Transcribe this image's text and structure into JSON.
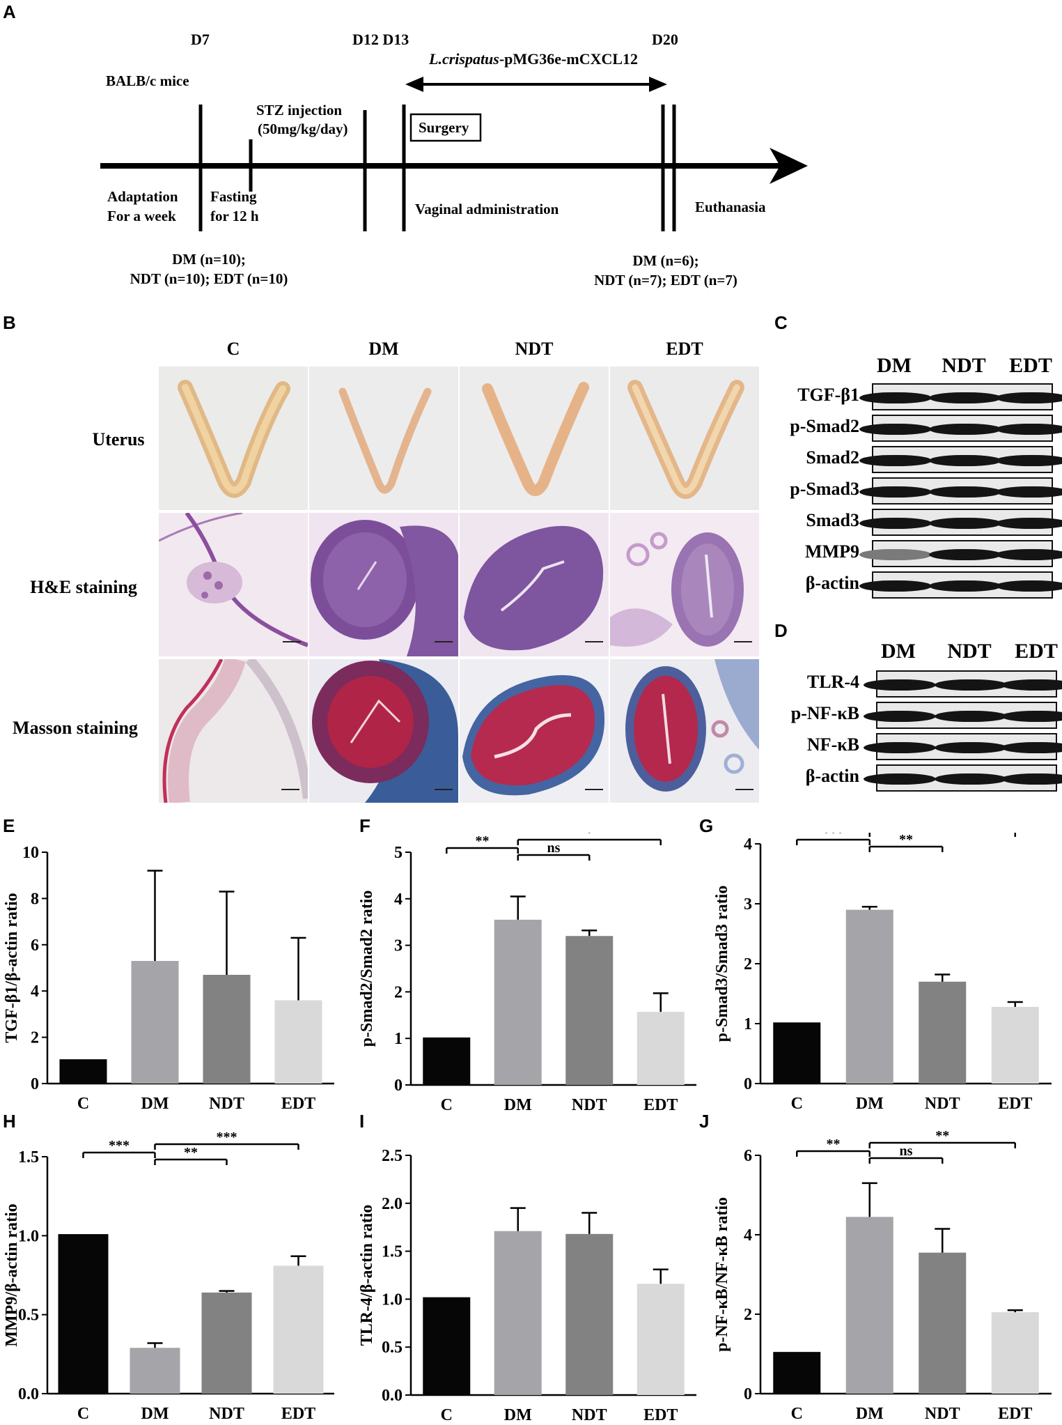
{
  "panels": {
    "A": "A",
    "B": "B",
    "C": "C",
    "D": "D",
    "E": "E",
    "F": "F",
    "G": "G",
    "H": "H",
    "I": "I",
    "J": "J"
  },
  "timeline": {
    "d7": "D7",
    "d12_d13": "D12 D13",
    "d20": "D20",
    "bacteria_italic": "L.crispatus",
    "bacteria_rest": "-pMG36e-mCXCL12",
    "mice": "BALB/c mice",
    "stz_line1": "STZ injection",
    "stz_line2": "(50mg/kg/day)",
    "surgery": "Surgery",
    "adapt_line1": "Adaptation",
    "adapt_line2": "For a week",
    "fast_line1": "Fasting",
    "fast_line2": "for 12  h",
    "vaginal": "Vaginal administration",
    "euthanasia": "Euthanasia",
    "groups_start_1": "DM (n=10);",
    "groups_start_2": "NDT (n=10); EDT (n=10)",
    "groups_end_1": "DM (n=6);",
    "groups_end_2": "NDT (n=7); EDT (n=7)"
  },
  "histology": {
    "columns": [
      "C",
      "DM",
      "NDT",
      "EDT"
    ],
    "rows": [
      "Uterus",
      "H&E staining",
      "Masson staining"
    ]
  },
  "blot_c": {
    "groups": [
      "DM",
      "NDT",
      "EDT"
    ],
    "rows": [
      "TGF-β1",
      "p-Smad2",
      "Smad2",
      "p-Smad3",
      "Smad3",
      "MMP9",
      "β-actin"
    ]
  },
  "blot_d": {
    "groups": [
      "DM",
      "NDT",
      "EDT"
    ],
    "rows": [
      "TLR-4",
      "p-NF-κB",
      "NF-κB",
      "β-actin"
    ]
  },
  "colors": {
    "C": "#060606",
    "DM": "#a5a5a9",
    "NDT": "#828282",
    "EDT": "#d9d9d9"
  },
  "chart_data": [
    {
      "panel": "E",
      "type": "bar",
      "ylabel": "TGF-β1/β-actin ratio",
      "categories": [
        "C",
        "DM",
        "NDT",
        "EDT"
      ],
      "values": [
        1.05,
        5.3,
        4.7,
        3.6
      ],
      "errors": [
        0,
        3.9,
        3.6,
        2.7
      ],
      "ylim": [
        0,
        10
      ],
      "yticks": [
        "0",
        "2",
        "4",
        "6",
        "8",
        "10"
      ],
      "significance": []
    },
    {
      "panel": "F",
      "type": "bar",
      "ylabel": "p-Smad2/Smad2 ratio",
      "categories": [
        "C",
        "DM",
        "NDT",
        "EDT"
      ],
      "values": [
        1.02,
        3.55,
        3.2,
        1.57
      ],
      "errors": [
        0,
        0.5,
        0.12,
        0.4
      ],
      "ylim": [
        0,
        5
      ],
      "yticks": [
        "0",
        "1",
        "2",
        "3",
        "4",
        "5"
      ],
      "significance": [
        {
          "from": "C",
          "to": "DM",
          "label": "**"
        },
        {
          "from": "DM",
          "to": "NDT",
          "label": "ns"
        },
        {
          "from": "DM",
          "to": "EDT",
          "label": "*"
        }
      ]
    },
    {
      "panel": "G",
      "type": "bar",
      "ylabel": "p-Smad3/Smad3 ratio",
      "categories": [
        "C",
        "DM",
        "NDT",
        "EDT"
      ],
      "values": [
        1.02,
        2.9,
        1.7,
        1.28
      ],
      "errors": [
        0,
        0.05,
        0.12,
        0.08
      ],
      "ylim": [
        0,
        4
      ],
      "yticks": [
        "0",
        "1",
        "2",
        "3",
        "4"
      ],
      "significance": [
        {
          "from": "C",
          "to": "DM",
          "label": "***"
        },
        {
          "from": "DM",
          "to": "NDT",
          "label": "**"
        },
        {
          "from": "DM",
          "to": "EDT",
          "label": "**"
        }
      ]
    },
    {
      "panel": "H",
      "type": "bar",
      "ylabel": "MMP9/β-actin ratio",
      "categories": [
        "C",
        "DM",
        "NDT",
        "EDT"
      ],
      "values": [
        1.01,
        0.29,
        0.64,
        0.81
      ],
      "errors": [
        0,
        0.03,
        0.01,
        0.06
      ],
      "ylim": [
        0,
        1.5
      ],
      "yticks": [
        "0.0",
        "0.5",
        "1.0",
        "1.5"
      ],
      "significance": [
        {
          "from": "C",
          "to": "DM",
          "label": "***"
        },
        {
          "from": "DM",
          "to": "NDT",
          "label": "**"
        },
        {
          "from": "DM",
          "to": "EDT",
          "label": "***"
        }
      ]
    },
    {
      "panel": "I",
      "type": "bar",
      "ylabel": "TLR-4/β-actin ratio",
      "categories": [
        "C",
        "DM",
        "NDT",
        "EDT"
      ],
      "values": [
        1.02,
        1.71,
        1.68,
        1.16
      ],
      "errors": [
        0,
        0.24,
        0.22,
        0.15
      ],
      "ylim": [
        0,
        2.5
      ],
      "yticks": [
        "0.0",
        "0.5",
        "1.0",
        "1.5",
        "2.0",
        "2.5"
      ],
      "significance": []
    },
    {
      "panel": "J",
      "type": "bar",
      "ylabel": "p-NF-κB/NF-κB ratio",
      "categories": [
        "C",
        "DM",
        "NDT",
        "EDT"
      ],
      "values": [
        1.05,
        4.45,
        3.55,
        2.05
      ],
      "errors": [
        0,
        0.85,
        0.6,
        0.05
      ],
      "ylim": [
        0,
        6
      ],
      "yticks": [
        "0",
        "2",
        "4",
        "6"
      ],
      "significance": [
        {
          "from": "C",
          "to": "DM",
          "label": "**"
        },
        {
          "from": "DM",
          "to": "NDT",
          "label": "ns"
        },
        {
          "from": "DM",
          "to": "EDT",
          "label": "**"
        }
      ]
    }
  ]
}
